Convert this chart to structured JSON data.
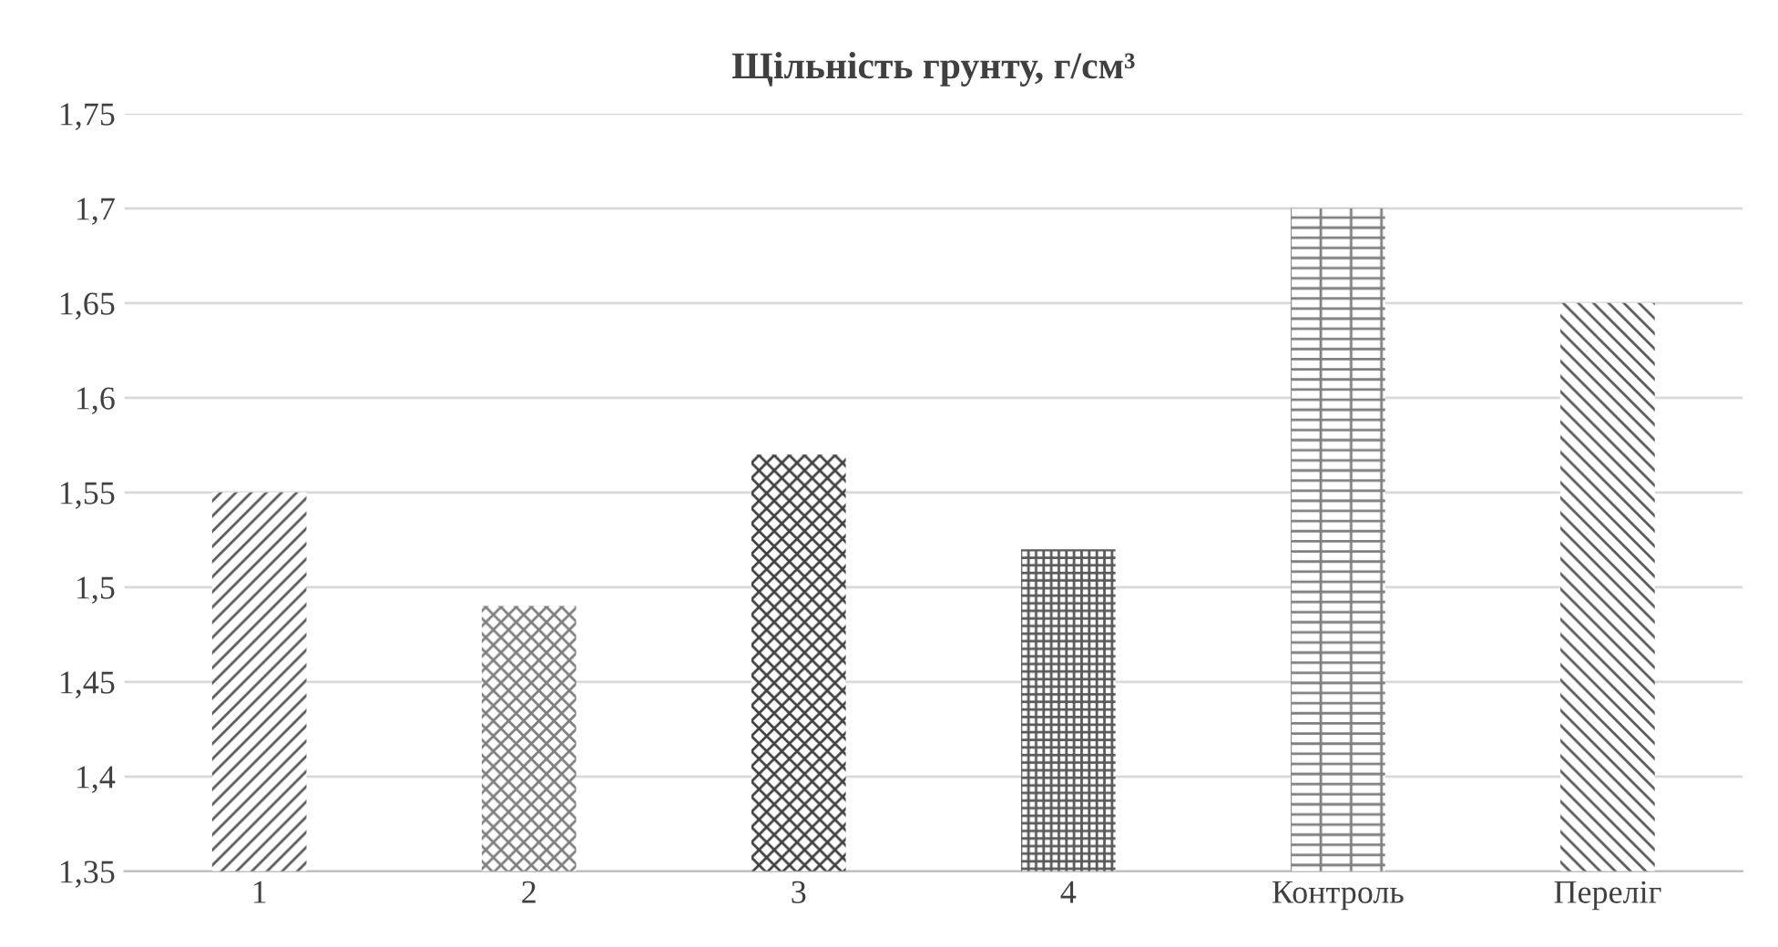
{
  "chart_data": {
    "type": "bar",
    "title": "Щільність грунту, г/см³",
    "categories": [
      "1",
      "2",
      "3",
      "4",
      "Контроль",
      "Переліг"
    ],
    "values": [
      1.55,
      1.49,
      1.57,
      1.52,
      1.7,
      1.65
    ],
    "colors": [
      "#595959",
      "#7f7f7f",
      "#404040",
      "#595959",
      "#7f7f7f",
      "#595959"
    ],
    "ylim": [
      1.35,
      1.75
    ],
    "yticks": [
      {
        "value": 1.35,
        "label": "1,35"
      },
      {
        "value": 1.4,
        "label": "1,4"
      },
      {
        "value": 1.45,
        "label": "1,45"
      },
      {
        "value": 1.5,
        "label": "1,5"
      },
      {
        "value": 1.55,
        "label": "1,55"
      },
      {
        "value": 1.6,
        "label": "1,6"
      },
      {
        "value": 1.65,
        "label": "1,65"
      },
      {
        "value": 1.7,
        "label": "1,7"
      },
      {
        "value": 1.75,
        "label": "1,75"
      }
    ],
    "grid": "y"
  }
}
